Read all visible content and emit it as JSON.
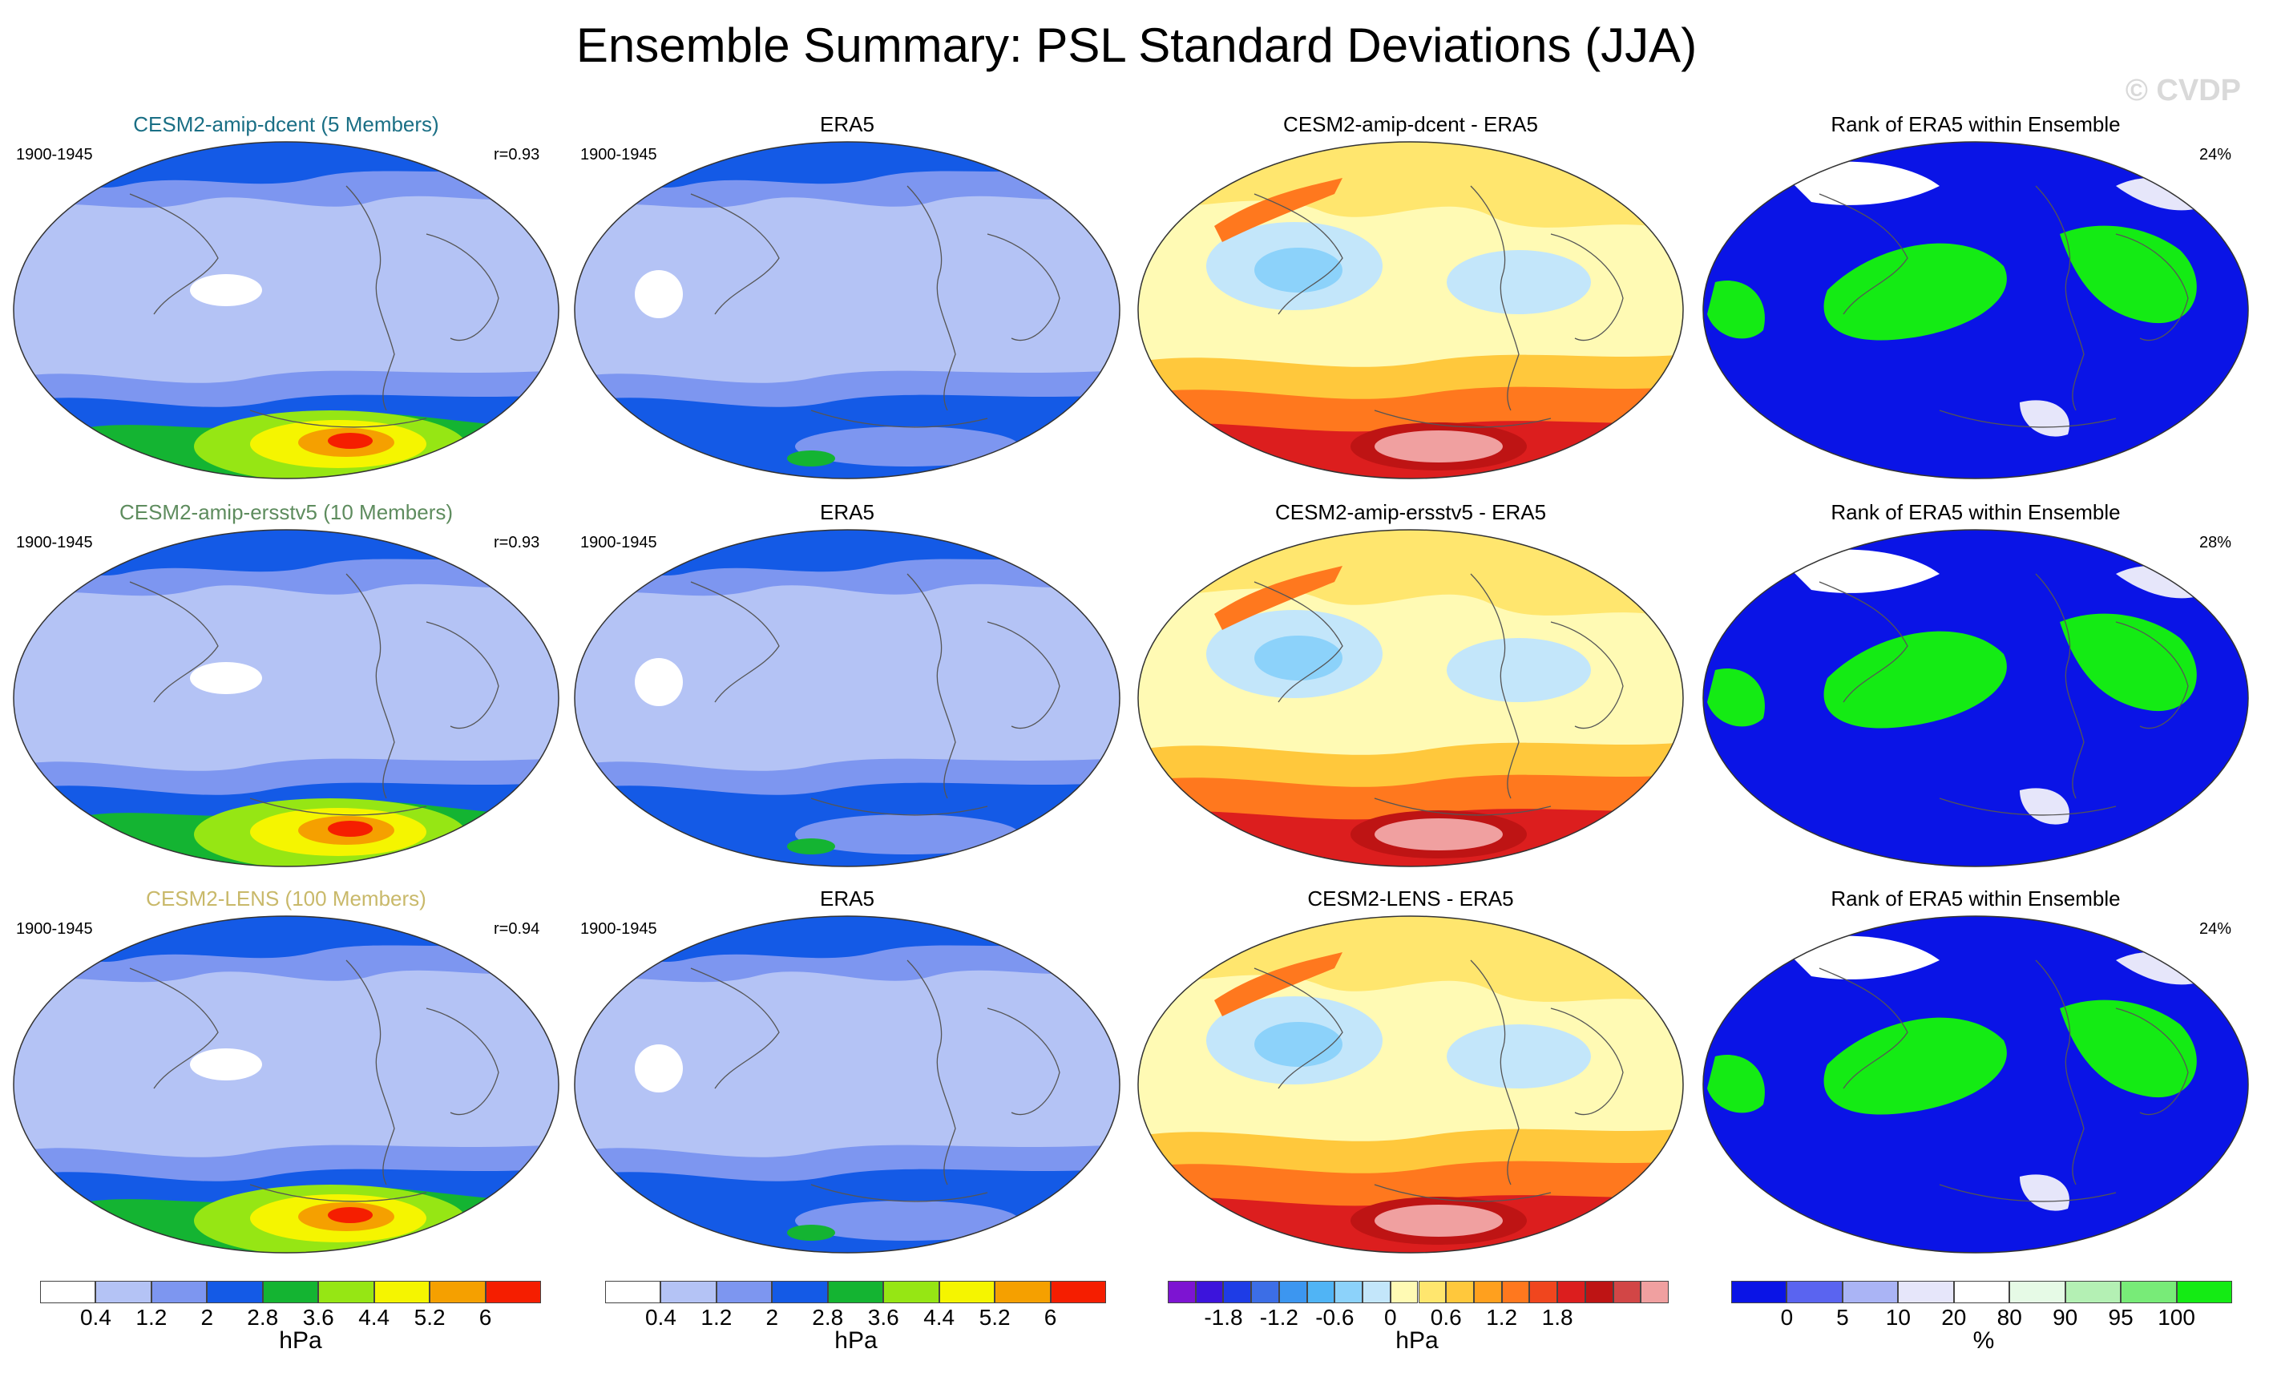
{
  "title": "Ensemble Summary: PSL Standard Deviations (JJA)",
  "watermark": "© CVDP",
  "rows": [
    {
      "model_title": "CESM2-amip-dcent (5 Members)",
      "model_color": "#1a6f85",
      "period": "1900-1945",
      "model_r": "r=0.93",
      "obs_title": "ERA5",
      "obs_period": "1900-1945",
      "diff_title": "CESM2-amip-dcent - ERA5",
      "rank_title": "Rank of ERA5 within Ensemble",
      "rank_pct": "24%"
    },
    {
      "model_title": "CESM2-amip-ersstv5 (10 Members)",
      "model_color": "#5e8c5e",
      "period": "1900-1945",
      "model_r": "r=0.93",
      "obs_title": "ERA5",
      "obs_period": "1900-1945",
      "diff_title": "CESM2-amip-ersstv5 - ERA5",
      "rank_title": "Rank of ERA5 within Ensemble",
      "rank_pct": "28%"
    },
    {
      "model_title": "CESM2-LENS (100 Members)",
      "model_color": "#c9b96a",
      "period": "1900-1945",
      "model_r": "r=0.94",
      "obs_title": "ERA5",
      "obs_period": "1900-1945",
      "diff_title": "CESM2-LENS - ERA5",
      "rank_title": "Rank of ERA5 within Ensemble",
      "rank_pct": "24%"
    }
  ],
  "colorbars": {
    "std": {
      "colors": [
        "#ffffff",
        "#b4c3f5",
        "#7d96f0",
        "#145ae6",
        "#14b432",
        "#96e614",
        "#f5f500",
        "#f5a000",
        "#f51e00"
      ],
      "ticks": [
        "0.4",
        "1.2",
        "2",
        "2.8",
        "3.6",
        "4.4",
        "5.2",
        "6"
      ],
      "unit": "hPa"
    },
    "diff": {
      "colors": [
        "#7d14d2",
        "#3c14dc",
        "#1e3ce6",
        "#3c6ee6",
        "#3c96f0",
        "#50b4f5",
        "#8cd2fa",
        "#c3e6fa",
        "#fffab4",
        "#ffe66e",
        "#ffc83c",
        "#ffa01e",
        "#ff781e",
        "#f0461e",
        "#dc1e1e",
        "#be1414",
        "#d24646",
        "#f0a0a0"
      ],
      "ticks": [
        "-1.8",
        "-1.2",
        "-0.6",
        "0",
        "0.6",
        "1.2",
        "1.8"
      ],
      "unit": "hPa"
    },
    "rank": {
      "colors": [
        "#0a14e6",
        "#5a64f0",
        "#aab4f5",
        "#e6e6fa",
        "#ffffff",
        "#e6fae6",
        "#b4f0b4",
        "#78eb78",
        "#14eb14"
      ],
      "ticks": [
        "0",
        "5",
        "10",
        "20",
        "80",
        "90",
        "95",
        "100"
      ],
      "unit": "%"
    }
  }
}
